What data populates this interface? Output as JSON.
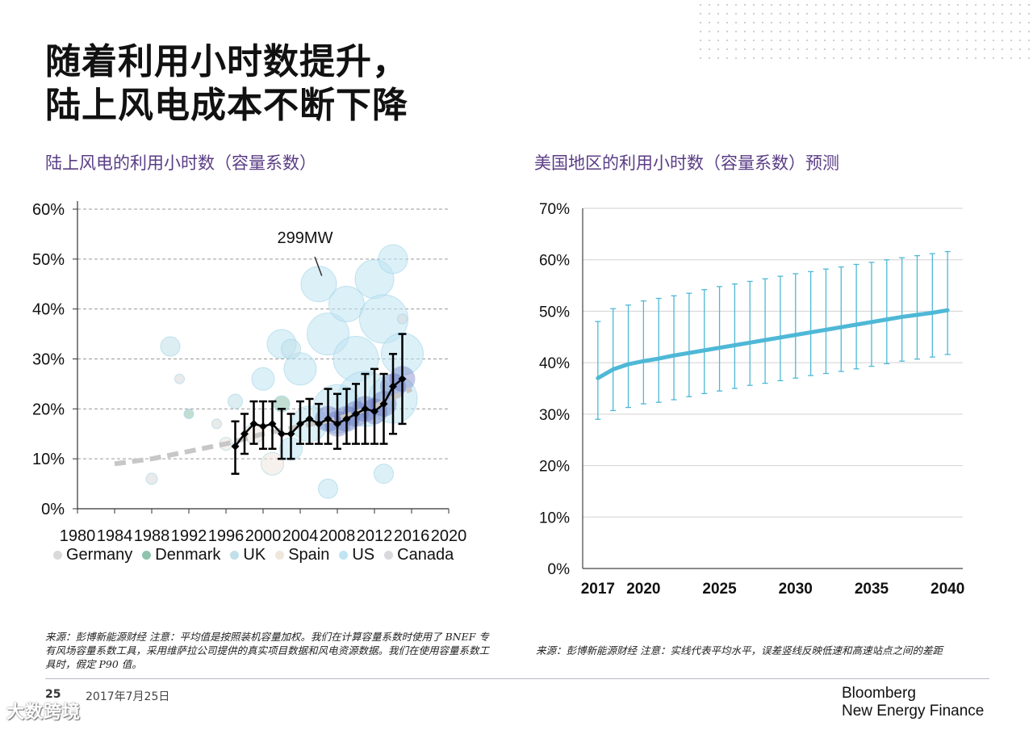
{
  "page": {
    "title_line1": "随着利用小时数提升，",
    "title_line2": "陆上风电成本不断下降",
    "left_subtitle": "陆上风电的利用小时数（容量系数）",
    "right_subtitle": "美国地区的利用小时数（容量系数）预测",
    "left_note": "来源：彭博新能源财经 注意：平均值是按照装机容量加权。我们在计算容量系数时使用了 BNEF 专有风场容量系数工具，采用维萨拉公司提供的真实项目数据和风电资源数据。我们在使用容量系数工具时，假定 P90 值。",
    "right_note": "来源：彭博新能源财经 注意：实线代表平均水平，误差竖线反映低速和高速站点之间的差距",
    "page_number": "25",
    "date": "2017年7月25日",
    "brand_line1": "Bloomberg",
    "brand_line2": "New Energy Finance",
    "watermark": "大数跨境",
    "colors": {
      "subtitle": "#5a3d85",
      "forecast_line": "#4eb8d6",
      "germany": "#d9d9d9",
      "denmark": "#8fc3ae",
      "uk": "#bfe0e8",
      "spain": "#efe6dc",
      "us": "#bfe4f2",
      "canada": "#d8d8dd"
    }
  },
  "chart_data": [
    {
      "type": "scatter",
      "title": "陆上风电的利用小时数（容量系数）",
      "xlabel": "",
      "ylabel": "",
      "xlim": [
        1980,
        2020
      ],
      "ylim": [
        0,
        60
      ],
      "x_ticks": [
        "1980",
        "1984",
        "1988",
        "1992",
        "1996",
        "2000",
        "2004",
        "2008",
        "2012",
        "2016",
        "2020"
      ],
      "y_ticks": [
        "0%",
        "10%",
        "20%",
        "30%",
        "40%",
        "50%",
        "60%"
      ],
      "annotation": "299MW",
      "annotation_point": {
        "x": 2006.5,
        "y": 46
      },
      "legend": [
        "Germany",
        "Denmark",
        "UK",
        "Spain",
        "US",
        "Canada"
      ],
      "trend": {
        "name": "trend",
        "x": [
          1984,
          1988,
          1992,
          1996,
          2000,
          2004,
          2008,
          2012,
          2016
        ],
        "y": [
          9,
          10,
          11.5,
          13,
          15,
          16.5,
          18,
          20.5,
          24
        ]
      },
      "average": {
        "name": "weighted average",
        "x": [
          1997,
          1998,
          1999,
          2000,
          2001,
          2002,
          2003,
          2004,
          2005,
          2006,
          2007,
          2008,
          2009,
          2010,
          2011,
          2012,
          2013,
          2014,
          2015
        ],
        "y": [
          12.5,
          15,
          17,
          16.5,
          17,
          15,
          15,
          17,
          18,
          17,
          18,
          17,
          18,
          19,
          20,
          19.5,
          21,
          24.5,
          26
        ],
        "low": [
          7,
          11,
          13,
          12,
          12,
          10,
          10,
          13,
          13,
          13,
          13,
          12,
          13,
          13,
          13,
          13,
          13,
          15,
          17
        ],
        "high": [
          17.5,
          19,
          21.5,
          21.5,
          21.5,
          20,
          19,
          21.5,
          22,
          21,
          24,
          23,
          24,
          25,
          27,
          28,
          27,
          31,
          35
        ]
      },
      "bubbles": [
        {
          "country": "Germany",
          "x": 1991,
          "y": 26,
          "s": 6
        },
        {
          "country": "Germany",
          "x": 1988,
          "y": 6,
          "s": 7
        },
        {
          "country": "Denmark",
          "x": 1992,
          "y": 19,
          "s": 6
        },
        {
          "country": "UK",
          "x": 1990,
          "y": 32.5,
          "s": 12
        },
        {
          "country": "UK",
          "x": 1997,
          "y": 21.5,
          "s": 9
        },
        {
          "country": "Spain",
          "x": 1996,
          "y": 13,
          "s": 8
        },
        {
          "country": "Germany",
          "x": 1995,
          "y": 17,
          "s": 6
        },
        {
          "country": "US",
          "x": 2000,
          "y": 26,
          "s": 14
        },
        {
          "country": "US",
          "x": 2002,
          "y": 33,
          "s": 18
        },
        {
          "country": "US",
          "x": 2004,
          "y": 28,
          "s": 20
        },
        {
          "country": "US",
          "x": 2006,
          "y": 45,
          "s": 22
        },
        {
          "country": "US",
          "x": 2007,
          "y": 35,
          "s": 26
        },
        {
          "country": "US",
          "x": 2009,
          "y": 41,
          "s": 22
        },
        {
          "country": "US",
          "x": 2010,
          "y": 30,
          "s": 28
        },
        {
          "country": "US",
          "x": 2012,
          "y": 46,
          "s": 24
        },
        {
          "country": "US",
          "x": 2013,
          "y": 38,
          "s": 30
        },
        {
          "country": "US",
          "x": 2014,
          "y": 50,
          "s": 18
        },
        {
          "country": "US",
          "x": 2015,
          "y": 31,
          "s": 26
        },
        {
          "country": "US",
          "x": 2011,
          "y": 22,
          "s": 34
        },
        {
          "country": "US",
          "x": 2014,
          "y": 22,
          "s": 30
        },
        {
          "country": "US",
          "x": 2008,
          "y": 20,
          "s": 30
        },
        {
          "country": "US",
          "x": 2005,
          "y": 17,
          "s": 22
        },
        {
          "country": "US",
          "x": 2003,
          "y": 12,
          "s": 14
        },
        {
          "country": "US",
          "x": 2013,
          "y": 7,
          "s": 12
        },
        {
          "country": "US",
          "x": 2007,
          "y": 4,
          "s": 12
        },
        {
          "country": "Canada",
          "x": 2015,
          "y": 38,
          "s": 6
        },
        {
          "country": "Spain",
          "x": 2001,
          "y": 9,
          "s": 14
        },
        {
          "country": "Spain",
          "x": 1999,
          "y": 15,
          "s": 12
        },
        {
          "country": "Denmark",
          "x": 2002,
          "y": 21,
          "s": 10
        },
        {
          "country": "UK",
          "x": 2003,
          "y": 32,
          "s": 12
        }
      ]
    },
    {
      "type": "line",
      "title": "美国地区的利用小时数（容量系数）预测",
      "xlabel": "",
      "ylabel": "",
      "xlim": [
        2016,
        2041
      ],
      "ylim": [
        0,
        70
      ],
      "x_ticks": [
        "2017",
        "2020",
        "2025",
        "2030",
        "2035",
        "2040"
      ],
      "y_ticks": [
        "0%",
        "10%",
        "20%",
        "30%",
        "40%",
        "50%",
        "60%",
        "70%"
      ],
      "series": [
        {
          "name": "average",
          "x": [
            2017,
            2018,
            2019,
            2020,
            2021,
            2022,
            2023,
            2024,
            2025,
            2026,
            2027,
            2028,
            2029,
            2030,
            2031,
            2032,
            2033,
            2034,
            2035,
            2036,
            2037,
            2038,
            2039,
            2040
          ],
          "values": [
            37,
            38.7,
            39.7,
            40.3,
            40.8,
            41.4,
            41.9,
            42.4,
            42.9,
            43.4,
            43.9,
            44.4,
            44.9,
            45.4,
            45.9,
            46.4,
            46.9,
            47.4,
            47.9,
            48.4,
            48.9,
            49.3,
            49.7,
            50.2
          ],
          "low": [
            29,
            30.7,
            31.3,
            32,
            32.3,
            32.8,
            33.4,
            34,
            34.5,
            35,
            35.6,
            36,
            36.5,
            37,
            37.5,
            37.9,
            38.3,
            38.8,
            39.3,
            39.8,
            40.3,
            40.7,
            41.1,
            41.6
          ],
          "high": [
            48,
            50.5,
            51.2,
            52,
            52.5,
            53,
            53.5,
            54.2,
            54.8,
            55.3,
            55.8,
            56.3,
            56.8,
            57.3,
            57.7,
            58.2,
            58.6,
            59.1,
            59.5,
            60,
            60.4,
            60.8,
            61.2,
            61.6
          ]
        }
      ]
    }
  ]
}
